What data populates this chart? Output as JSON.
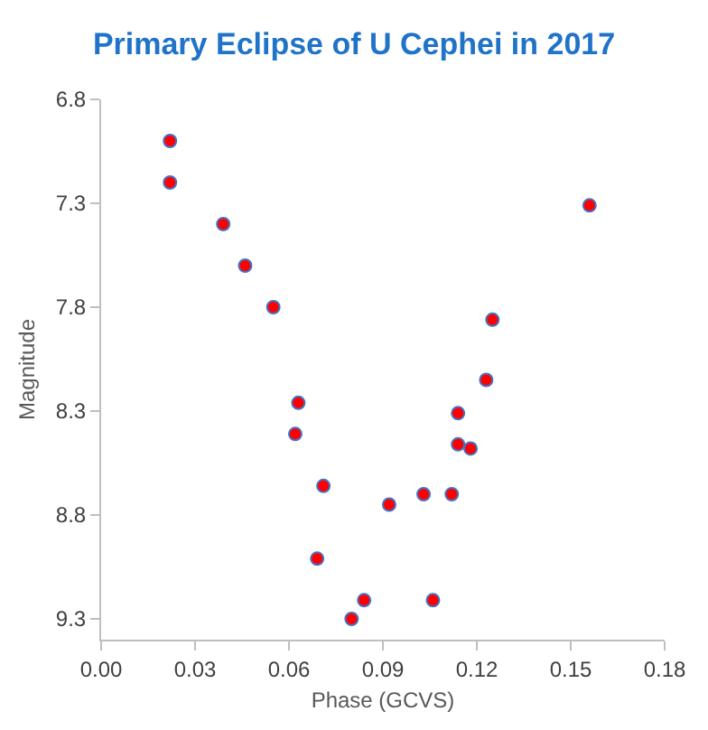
{
  "chart_data": {
    "type": "scatter",
    "title": "Primary Eclipse of U Cephei in 2017",
    "xlabel": "Phase (GCVS)",
    "ylabel": "Magnitude",
    "x": [
      0.022,
      0.022,
      0.039,
      0.046,
      0.055,
      0.063,
      0.062,
      0.071,
      0.069,
      0.084,
      0.08,
      0.092,
      0.103,
      0.112,
      0.106,
      0.114,
      0.118,
      0.114,
      0.123,
      0.125,
      0.156
    ],
    "values": [
      7.0,
      7.2,
      7.4,
      7.6,
      7.8,
      8.26,
      8.41,
      8.66,
      9.01,
      9.21,
      9.3,
      8.75,
      8.7,
      8.7,
      9.21,
      8.46,
      8.48,
      8.31,
      8.15,
      7.86,
      7.31
    ],
    "color": "#ff0000",
    "marker": "circle",
    "grid": false,
    "xlim": [
      0,
      0.18
    ],
    "xticks": [
      {
        "value": 0,
        "label": "0.00"
      },
      {
        "value": 0.03,
        "label": "0.03"
      },
      {
        "value": 0.06,
        "label": "0.06"
      },
      {
        "value": 0.09,
        "label": "0.09"
      },
      {
        "value": 0.12,
        "label": "0.12"
      },
      {
        "value": 0.15,
        "label": "0.15"
      },
      {
        "value": 0.18,
        "label": "0.18"
      }
    ],
    "ylim": [
      9.4,
      6.8
    ],
    "yticks": [
      6.8,
      7.3,
      7.8,
      8.3,
      8.8,
      9.3
    ]
  }
}
